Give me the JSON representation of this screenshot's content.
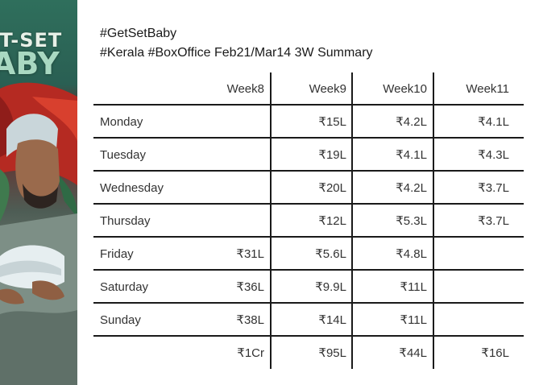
{
  "poster": {
    "title_line1": "ET-SET",
    "title_line2": "ABY"
  },
  "headline": {
    "line1": "#GetSetBaby",
    "line2": "#Kerala #BoxOffice Feb21/Mar14 3W Summary"
  },
  "table": {
    "columns": [
      "",
      "Week8",
      "Week9",
      "Week10",
      "Week11"
    ],
    "rows": [
      {
        "day": "Monday",
        "values": [
          "",
          "₹15L",
          "₹4.2L",
          "₹4.1L"
        ]
      },
      {
        "day": "Tuesday",
        "values": [
          "",
          "₹19L",
          "₹4.1L",
          "₹4.3L"
        ]
      },
      {
        "day": "Wednesday",
        "values": [
          "",
          "₹20L",
          "₹4.2L",
          "₹3.7L"
        ]
      },
      {
        "day": "Thursday",
        "values": [
          "",
          "₹12L",
          "₹5.3L",
          "₹3.7L"
        ]
      },
      {
        "day": "Friday",
        "values": [
          "₹31L",
          "₹5.6L",
          "₹4.8L",
          ""
        ]
      },
      {
        "day": "Saturday",
        "values": [
          "₹36L",
          "₹9.9L",
          "₹11L",
          ""
        ]
      },
      {
        "day": "Sunday",
        "values": [
          "₹38L",
          "₹14L",
          "₹11L",
          ""
        ]
      }
    ],
    "totals": [
      "₹1Cr",
      "₹95L",
      "₹44L",
      "₹16L"
    ]
  }
}
